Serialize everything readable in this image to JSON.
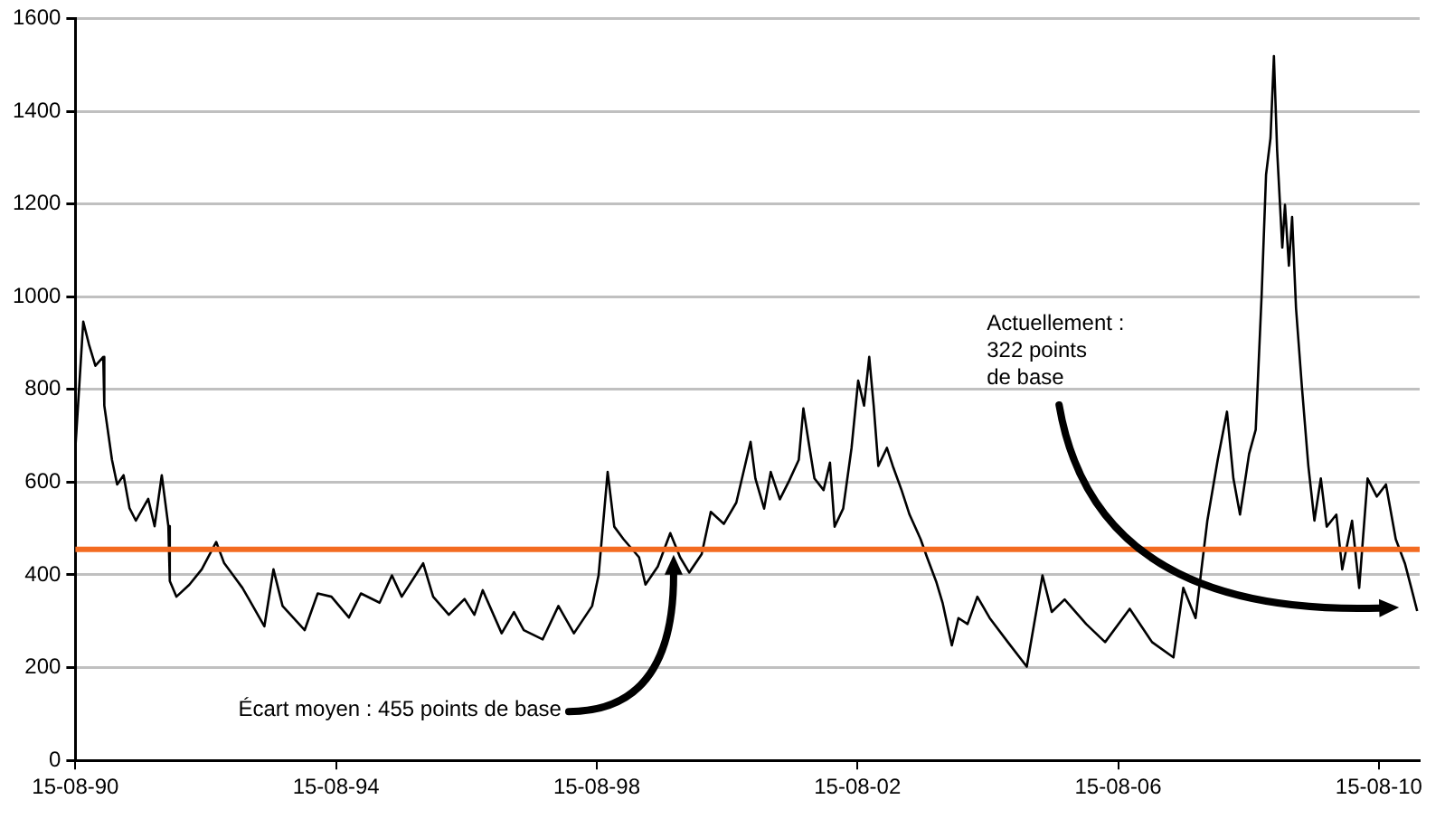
{
  "chart_data": {
    "type": "line",
    "x": [
      "1990-08-15",
      "1990-09-28",
      "1990-10-30",
      "1990-12-05",
      "1991-01-18",
      "1991-01-24",
      "1991-03-08",
      "1991-04-06",
      "1991-05-12",
      "1991-06-14",
      "1991-07-20",
      "1991-09-27",
      "1991-11-02",
      "1991-12-12",
      "1992-01-18",
      "1992-01-26",
      "1992-03-03",
      "1992-05-15",
      "1992-07-23",
      "1992-10-12",
      "1992-11-25",
      "1993-03-08",
      "1993-04-13",
      "1993-07-09",
      "1993-08-29",
      "1993-10-19",
      "1994-02-20",
      "1994-05-04",
      "1994-07-20",
      "1994-10-26",
      "1995-01-01",
      "1995-04-16",
      "1995-06-24",
      "1995-08-18",
      "1995-12-16",
      "1996-02-10",
      "1996-05-08",
      "1996-08-04",
      "1996-09-28",
      "1996-11-14",
      "1997-02-28",
      "1997-05-08",
      "1997-07-02",
      "1997-10-16",
      "1998-01-12",
      "1998-04-09",
      "1998-07-20",
      "1998-08-25",
      "1998-10-15",
      "1998-11-21",
      "1999-01-12",
      "1999-04-09",
      "1999-05-15",
      "1999-07-23",
      "1999-10-01",
      "1999-11-25",
      "2000-01-15",
      "2000-03-25",
      "2000-05-15",
      "2000-07-27",
      "2000-10-05",
      "2000-11-10",
      "2000-12-24",
      "2001-01-20",
      "2001-03-10",
      "2001-04-16",
      "2001-06-06",
      "2001-07-27",
      "2001-09-20",
      "2001-10-16",
      "2001-11-14",
      "2001-12-17",
      "2002-02-06",
      "2002-03-14",
      "2002-04-09",
      "2002-05-27",
      "2002-07-13",
      "2002-08-19",
      "2002-09-21",
      "2002-10-20",
      "2002-11-14",
      "2002-12-10",
      "2003-01-27",
      "2003-03-01",
      "2003-04-20",
      "2003-06-03",
      "2003-08-04",
      "2003-09-09",
      "2003-10-30",
      "2003-12-05",
      "2004-01-26",
      "2004-03-03",
      "2004-04-23",
      "2004-06-17",
      "2004-08-25",
      "2004-12-05",
      "2005-03-21",
      "2005-06-17",
      "2005-08-08",
      "2005-10-19",
      "2006-02-17",
      "2006-06-03",
      "2006-10-19",
      "2007-02-21",
      "2007-06-21",
      "2007-08-15",
      "2007-10-23",
      "2007-12-28",
      "2008-02-24",
      "2008-04-16",
      "2008-05-22",
      "2008-06-28",
      "2008-08-18",
      "2008-09-24",
      "2008-10-27",
      "2008-11-21",
      "2008-12-16",
      "2009-01-04",
      "2009-01-22",
      "2009-02-20",
      "2009-03-07",
      "2009-03-29",
      "2009-04-16",
      "2009-05-08",
      "2009-06-10",
      "2009-07-16",
      "2009-08-19",
      "2009-09-24",
      "2009-10-27",
      "2009-12-20",
      "2010-01-22",
      "2010-03-18",
      "2010-04-27",
      "2010-06-13",
      "2010-08-04",
      "2010-09-24",
      "2010-11-18",
      "2011-01-08",
      "2011-02-13",
      "2011-03-18"
    ],
    "series": [
      {
        "color": "#000000",
        "values": [
          674,
          946,
          897,
          851,
          870,
          765,
          648,
          595,
          615,
          544,
          517,
          564,
          505,
          615,
          505,
          387,
          353,
          379,
          412,
          471,
          426,
          372,
          348,
          289,
          412,
          333,
          281,
          360,
          353,
          308,
          360,
          340,
          399,
          353,
          425,
          353,
          314,
          348,
          314,
          367,
          274,
          320,
          281,
          261,
          333,
          274,
          333,
          399,
          622,
          504,
          477,
          438,
          379,
          418,
          490,
          438,
          405,
          445,
          536,
          510,
          556,
          615,
          687,
          608,
          543,
          622,
          563,
          602,
          648,
          759,
          687,
          608,
          583,
          642,
          504,
          543,
          674,
          819,
          765,
          870,
          765,
          635,
          674,
          635,
          582,
          530,
          477,
          438,
          386,
          340,
          248,
          307,
          294,
          353,
          307,
          255,
          202,
          399,
          320,
          347,
          294,
          255,
          327,
          255,
          222,
          372,
          307,
          517,
          648,
          752,
          608,
          530,
          661,
          713,
          1001,
          1263,
          1342,
          1519,
          1316,
          1106,
          1198,
          1067,
          1172,
          975,
          805,
          635,
          517,
          608,
          504,
          530,
          412,
          517,
          372,
          608,
          569,
          595,
          477,
          425,
          372,
          322
        ]
      }
    ],
    "xlim": [
      "1990-08-15",
      "2011-04-01"
    ],
    "xticks": [
      {
        "value": "1990-08-15",
        "label": "15-08-90"
      },
      {
        "value": "1994-08-15",
        "label": "15-08-94"
      },
      {
        "value": "1998-08-15",
        "label": "15-08-98"
      },
      {
        "value": "2002-08-15",
        "label": "15-08-02"
      },
      {
        "value": "2006-08-15",
        "label": "15-08-06"
      },
      {
        "value": "2010-08-15",
        "label": "15-08-10"
      }
    ],
    "ylim": [
      0,
      1600
    ],
    "yticks": [
      0,
      200,
      400,
      600,
      800,
      1000,
      1200,
      1400,
      1600
    ],
    "grid": "y",
    "legend": false,
    "marker": "none",
    "line_style": "solid",
    "ref_lines": [
      {
        "axis": "y",
        "value": 455,
        "color": "#f36b21"
      }
    ],
    "annotations": [
      "Écart moyen : 455 points de base",
      "Actuellement :\n322 points\nde base"
    ]
  }
}
